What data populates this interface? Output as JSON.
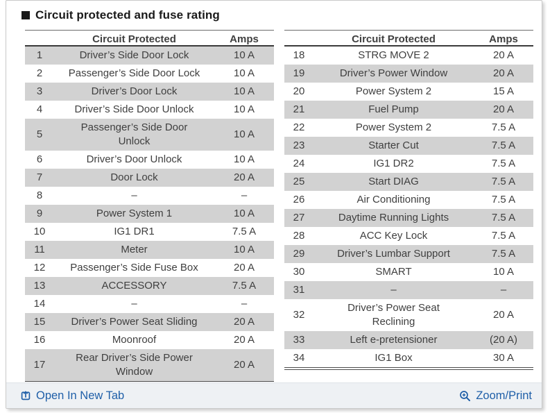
{
  "title": "Circuit protected and fuse rating",
  "tables": {
    "headers": {
      "circuit": "Circuit Protected",
      "amps": "Amps"
    },
    "left": {
      "rows": [
        {
          "num": "1",
          "circuit": "Driver’s Side Door Lock",
          "amps": "10 A"
        },
        {
          "num": "2",
          "circuit": "Passenger’s Side Door Lock",
          "amps": "10 A"
        },
        {
          "num": "3",
          "circuit": "Driver’s Door Lock",
          "amps": "10 A"
        },
        {
          "num": "4",
          "circuit": "Driver’s Side Door Unlock",
          "amps": "10 A"
        },
        {
          "num": "5",
          "circuit": "Passenger’s Side Door\nUnlock",
          "amps": "10 A"
        },
        {
          "num": "6",
          "circuit": "Driver’s Door Unlock",
          "amps": "10 A"
        },
        {
          "num": "7",
          "circuit": "Door Lock",
          "amps": "20 A"
        },
        {
          "num": "8",
          "circuit": "–",
          "amps": "–"
        },
        {
          "num": "9",
          "circuit": "Power System 1",
          "amps": "10 A"
        },
        {
          "num": "10",
          "circuit": "IG1 DR1",
          "amps": "7.5 A"
        },
        {
          "num": "11",
          "circuit": "Meter",
          "amps": "10 A"
        },
        {
          "num": "12",
          "circuit": "Passenger’s Side Fuse Box",
          "amps": "20 A"
        },
        {
          "num": "13",
          "circuit": "ACCESSORY",
          "amps": "7.5 A"
        },
        {
          "num": "14",
          "circuit": "–",
          "amps": "–"
        },
        {
          "num": "15",
          "circuit": "Driver’s Power Seat Sliding",
          "amps": "20 A"
        },
        {
          "num": "16",
          "circuit": "Moonroof",
          "amps": "20 A"
        },
        {
          "num": "17",
          "circuit": "Rear Driver’s Side Power\nWindow",
          "amps": "20 A"
        }
      ]
    },
    "right": {
      "rows": [
        {
          "num": "18",
          "circuit": "STRG MOVE 2",
          "amps": "20 A"
        },
        {
          "num": "19",
          "circuit": "Driver’s Power Window",
          "amps": "20 A"
        },
        {
          "num": "20",
          "circuit": "Power System 2",
          "amps": "15 A"
        },
        {
          "num": "21",
          "circuit": "Fuel Pump",
          "amps": "20 A"
        },
        {
          "num": "22",
          "circuit": "Power System 2",
          "amps": "7.5 A"
        },
        {
          "num": "23",
          "circuit": "Starter Cut",
          "amps": "7.5 A"
        },
        {
          "num": "24",
          "circuit": "IG1 DR2",
          "amps": "7.5 A"
        },
        {
          "num": "25",
          "circuit": "Start DIAG",
          "amps": "7.5 A"
        },
        {
          "num": "26",
          "circuit": "Air Conditioning",
          "amps": "7.5 A"
        },
        {
          "num": "27",
          "circuit": "Daytime Running Lights",
          "amps": "7.5 A"
        },
        {
          "num": "28",
          "circuit": "ACC Key Lock",
          "amps": "7.5 A"
        },
        {
          "num": "29",
          "circuit": "Driver’s Lumbar Support",
          "amps": "7.5 A"
        },
        {
          "num": "30",
          "circuit": "SMART",
          "amps": "10 A"
        },
        {
          "num": "31",
          "circuit": "–",
          "amps": "–"
        },
        {
          "num": "32",
          "circuit": "Driver’s Power Seat\nReclining",
          "amps": "20 A"
        },
        {
          "num": "33",
          "circuit": "Left e-pretensioner",
          "amps": "(20 A)"
        },
        {
          "num": "34",
          "circuit": "IG1 Box",
          "amps": "30 A"
        }
      ]
    }
  },
  "footer": {
    "open_in_new_tab": "Open In New Tab",
    "zoom_print": "Zoom/Print"
  },
  "icons": {
    "section_bullet": "black-square",
    "open_in_new_tab": "box-with-up-arrow",
    "zoom": "magnifier-with-plus"
  },
  "colors": {
    "accent_blue": "#1f5fa8",
    "row_shade": "#d2d2d2",
    "footer_bg": "#eef1f4",
    "title_black": "#1a1a1a",
    "text_dark": "#3f3f3f"
  }
}
